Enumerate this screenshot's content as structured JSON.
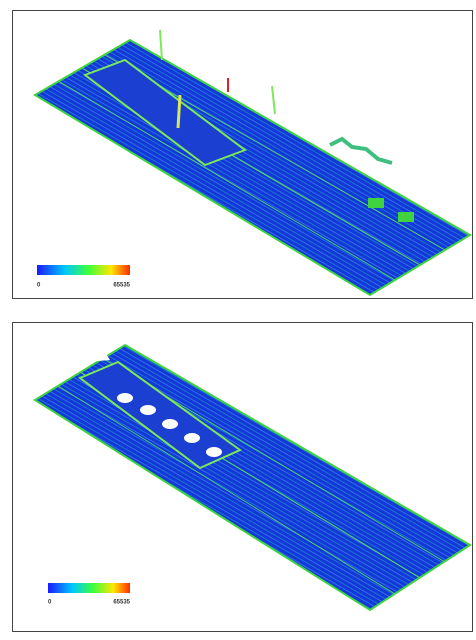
{
  "panels": [
    {
      "colorbar": {
        "min": 0,
        "max": 65535
      }
    },
    {
      "colorbar": {
        "min": 0,
        "max": 65535
      }
    }
  ]
}
